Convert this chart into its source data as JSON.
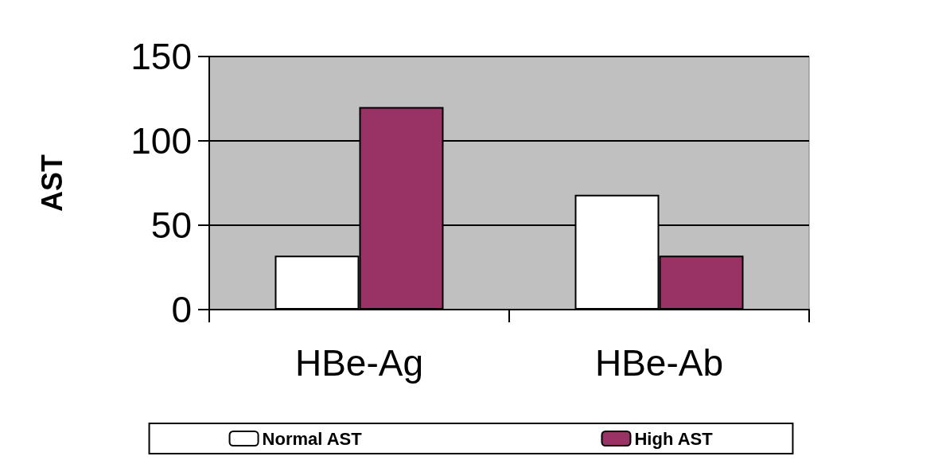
{
  "chart_data": {
    "type": "bar",
    "ylabel": "AST",
    "categories": [
      "HBe-Ag",
      "HBe-Ab"
    ],
    "series": [
      {
        "name": "Normal AST",
        "color": "#ffffff",
        "values": [
          32,
          68
        ]
      },
      {
        "name": "High AST",
        "color": "#993366",
        "values": [
          120,
          32
        ]
      }
    ],
    "ylim": [
      0,
      150
    ],
    "yticks": [
      0,
      50,
      100,
      150
    ],
    "grid": "y",
    "legend": "bottom"
  }
}
